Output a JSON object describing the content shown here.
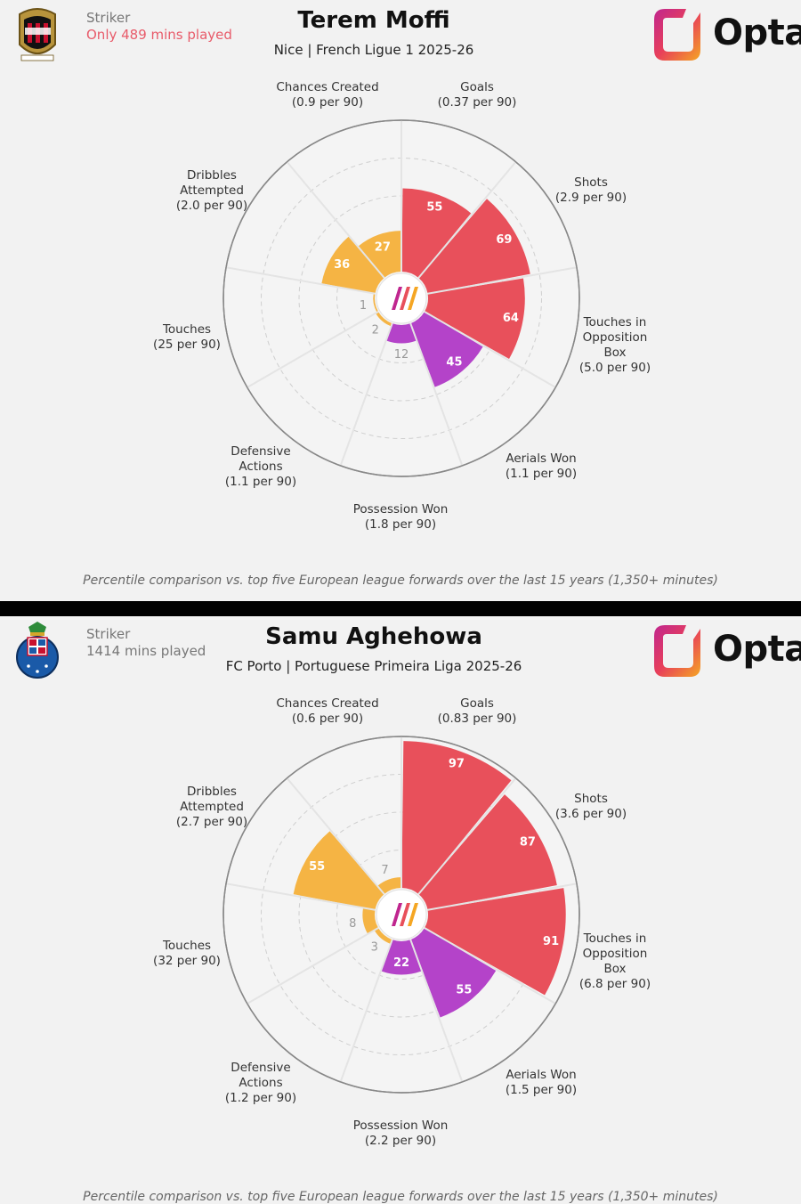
{
  "panels": [
    {
      "player": "Terem Moffi",
      "position": "Striker",
      "minutes_note": "Only 489 mins played",
      "minutes_warning": true,
      "subtitle": "Nice | French Ligue 1 2025-26",
      "badge": "ogc-nice-crest-icon",
      "brand": "Opta",
      "metrics": [
        {
          "name": "Goals",
          "per90": "(0.37 per 90)",
          "pct": 55
        },
        {
          "name": "Shots",
          "per90": "(2.9 per 90)",
          "pct": 69
        },
        {
          "name": "Touches in Opposition Box",
          "per90": "(5.0 per 90)",
          "pct": 64
        },
        {
          "name": "Aerials Won",
          "per90": "(1.1 per 90)",
          "pct": 45
        },
        {
          "name": "Possession Won",
          "per90": "(1.8 per 90)",
          "pct": 12
        },
        {
          "name": "Defensive Actions",
          "per90": "(1.1 per 90)",
          "pct": 2
        },
        {
          "name": "Touches",
          "per90": "(25 per 90)",
          "pct": 1
        },
        {
          "name": "Dribbles Attempted",
          "per90": "(2.0 per 90)",
          "pct": 36
        },
        {
          "name": "Chances Created",
          "per90": "(0.9 per 90)",
          "pct": 27
        }
      ],
      "footnote": "Percentile comparison vs. top five European league forwards over the last 15 years (1,350+ minutes)"
    },
    {
      "player": "Samu Aghehowa",
      "position": "Striker",
      "minutes_note": "1414 mins played",
      "minutes_warning": false,
      "subtitle": "FC Porto | Portuguese Primeira Liga 2025-26",
      "badge": "fc-porto-crest-icon",
      "brand": "Opta",
      "metrics": [
        {
          "name": "Goals",
          "per90": "(0.83 per 90)",
          "pct": 97
        },
        {
          "name": "Shots",
          "per90": "(3.6 per 90)",
          "pct": 87
        },
        {
          "name": "Touches in Opposition Box",
          "per90": "(6.8 per 90)",
          "pct": 91
        },
        {
          "name": "Aerials Won",
          "per90": "(1.5 per 90)",
          "pct": 55
        },
        {
          "name": "Possession Won",
          "per90": "(2.2 per 90)",
          "pct": 22
        },
        {
          "name": "Defensive Actions",
          "per90": "(1.2 per 90)",
          "pct": 3
        },
        {
          "name": "Touches",
          "per90": "(32 per 90)",
          "pct": 8
        },
        {
          "name": "Dribbles Attempted",
          "per90": "(2.7 per 90)",
          "pct": 55
        },
        {
          "name": "Chances Created",
          "per90": "(0.6 per 90)",
          "pct": 7
        }
      ],
      "footnote": "Percentile comparison vs. top five European league forwards over the last 15 years (1,350+ minutes)"
    }
  ],
  "chart_data": [
    {
      "type": "polar-bar",
      "title": "Terem Moffi",
      "categories": [
        "Goals",
        "Shots",
        "Touches in Opposition Box",
        "Aerials Won",
        "Possession Won",
        "Defensive Actions",
        "Touches",
        "Dribbles Attempted",
        "Chances Created"
      ],
      "values": [
        55,
        69,
        64,
        45,
        12,
        2,
        1,
        36,
        27
      ],
      "ylim": [
        0,
        100
      ]
    },
    {
      "type": "polar-bar",
      "title": "Samu Aghehowa",
      "categories": [
        "Goals",
        "Shots",
        "Touches in Opposition Box",
        "Aerials Won",
        "Possession Won",
        "Defensive Actions",
        "Touches",
        "Dribbles Attempted",
        "Chances Created"
      ],
      "values": [
        97,
        87,
        91,
        55,
        22,
        3,
        8,
        55,
        7
      ],
      "ylim": [
        0,
        100
      ]
    }
  ],
  "colors": {
    "attack": "#e8505b",
    "aerial": "#b443c9",
    "possession": "#f5b444",
    "muted_value": "#999999",
    "warning": "#e85b6a"
  }
}
